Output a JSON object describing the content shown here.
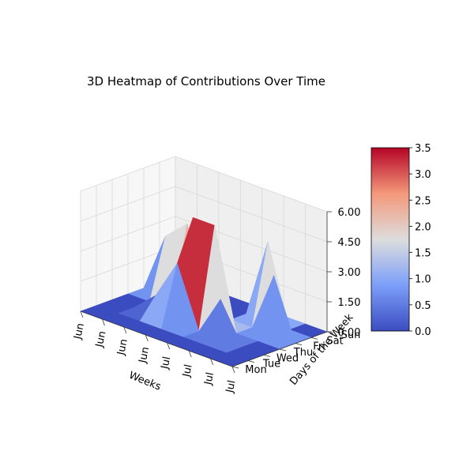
{
  "chart_data": {
    "type": "surface3d",
    "title": "3D Heatmap of Contributions Over Time",
    "xlabel": "Weeks",
    "ylabel": "Days of the Week",
    "x_tick_labels": [
      "Jun",
      "Jun",
      "Jun",
      "Jun",
      "Jul",
      "Jul",
      "Jul",
      "Jul"
    ],
    "y_tick_labels": [
      "Mon",
      "Tue",
      "Wed",
      "Thu",
      "Fri",
      "Sat",
      "Sun"
    ],
    "z_tick_labels": [
      "0.00",
      "1.50",
      "3.00",
      "4.50",
      "6.00"
    ],
    "zlim": [
      0,
      6
    ],
    "colorbar": {
      "colormap": "coolwarm",
      "range": [
        0,
        3.5
      ],
      "tick_labels": [
        "0.0",
        "0.5",
        "1.0",
        "1.5",
        "2.0",
        "2.5",
        "3.0",
        "3.5"
      ]
    },
    "grid": true,
    "z_values": [
      [
        0,
        0,
        0,
        0,
        0,
        0,
        0
      ],
      [
        0,
        0,
        0,
        0,
        3,
        0,
        0
      ],
      [
        0,
        0,
        1,
        0,
        4,
        0,
        0
      ],
      [
        0,
        0,
        3,
        5,
        0,
        0,
        0
      ],
      [
        0,
        0,
        0,
        5,
        0,
        0,
        0
      ],
      [
        0,
        0,
        2,
        0,
        0,
        4,
        0
      ],
      [
        0,
        0,
        0,
        0,
        3,
        0,
        0
      ],
      [
        0,
        0,
        0,
        0,
        0,
        0,
        0
      ]
    ]
  }
}
